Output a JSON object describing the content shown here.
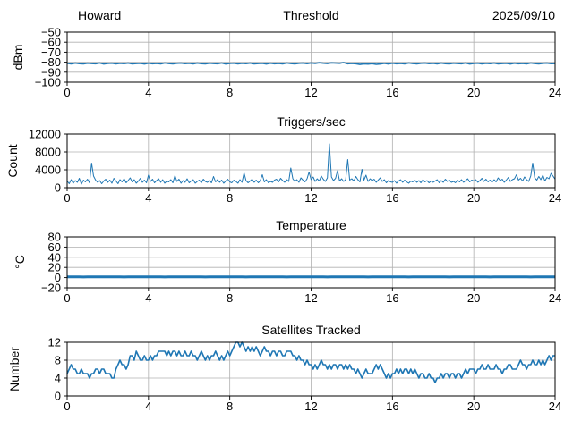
{
  "figure": {
    "background": "#ffffff",
    "line_color": "#1f77b4",
    "grid_color": "#b0b0b0",
    "spine_color": "#000000",
    "text_color": "#000000"
  },
  "chart_data": [
    {
      "id": "threshold",
      "type": "line",
      "title": "Threshold",
      "title_left": "Howard",
      "title_right": "2025/09/10",
      "ylabel": "dBm",
      "xlabel": "",
      "xlim": [
        0,
        24
      ],
      "ylim": [
        -100,
        -50
      ],
      "xticks": [
        0,
        4,
        8,
        12,
        16,
        20,
        24
      ],
      "yticks": [
        -100,
        -90,
        -80,
        -70,
        -60,
        -50
      ],
      "grid": true,
      "legend": "none",
      "x_start": 0,
      "x_step": 0.2,
      "line_width": 1.6,
      "values": [
        -81.1,
        -81.6,
        -80.9,
        -81.4,
        -81.7,
        -81.0,
        -81.3,
        -81.5,
        -80.8,
        -81.8,
        -81.2,
        -81.0,
        -81.7,
        -81.1,
        -81.4,
        -80.9,
        -81.6,
        -81.3,
        -81.1,
        -81.8,
        -81.0,
        -81.5,
        -81.2,
        -81.7,
        -80.8,
        -81.3,
        -81.6,
        -81.1,
        -80.9,
        -81.4,
        -81.1,
        -81.6,
        -80.9,
        -81.4,
        -81.7,
        -81.0,
        -81.3,
        -81.5,
        -80.8,
        -81.8,
        -81.2,
        -81.0,
        -81.7,
        -81.1,
        -81.4,
        -80.9,
        -81.6,
        -81.3,
        -81.1,
        -81.8,
        -81.0,
        -81.5,
        -81.2,
        -81.7,
        -80.8,
        -81.3,
        -81.6,
        -81.1,
        -80.9,
        -81.4,
        -80.7,
        -81.2,
        -80.5,
        -81.0,
        -81.3,
        -80.6,
        -80.9,
        -81.1,
        -80.4,
        -81.5,
        -81.2,
        -81.5,
        -82.2,
        -81.6,
        -81.9,
        -81.4,
        -82.1,
        -81.8,
        -81.1,
        -81.8,
        -81.0,
        -81.5,
        -81.2,
        -81.7,
        -80.8,
        -81.3,
        -81.6,
        -81.1,
        -80.9,
        -81.4,
        -81.1,
        -81.6,
        -80.9,
        -81.4,
        -81.7,
        -81.0,
        -81.3,
        -81.5,
        -80.8,
        -81.8,
        -81.2,
        -81.0,
        -81.7,
        -81.1,
        -81.4,
        -80.9,
        -81.6,
        -81.3,
        -81.1,
        -81.8,
        -81.0,
        -81.5,
        -81.2,
        -81.7,
        -80.8,
        -81.3,
        -81.6,
        -81.1,
        -80.9,
        -81.4,
        -81.3
      ]
    },
    {
      "id": "triggers",
      "type": "line",
      "title": "Triggers/sec",
      "ylabel": "Count",
      "xlabel": "",
      "xlim": [
        0,
        24
      ],
      "ylim": [
        0,
        12000
      ],
      "xticks": [
        0,
        4,
        8,
        12,
        16,
        20,
        24
      ],
      "yticks": [
        0,
        4000,
        8000,
        12000
      ],
      "grid": true,
      "legend": "none",
      "x_start": 0,
      "x_step": 0.1,
      "line_width": 1,
      "values": [
        1500,
        900,
        1800,
        1000,
        1600,
        1200,
        2100,
        800,
        1700,
        1300,
        1900,
        1100,
        5500,
        2600,
        1700,
        1200,
        1600,
        900,
        1500,
        1900,
        1200,
        1700,
        1000,
        2100,
        1500,
        900,
        1800,
        1300,
        2000,
        1100,
        1600,
        2200,
        1300,
        1800,
        1000,
        1500,
        2100,
        1200,
        1700,
        1100,
        2800,
        1400,
        1900,
        1100,
        1600,
        2000,
        1200,
        1800,
        1000,
        1500,
        1300,
        1800,
        1100,
        2700,
        1400,
        1900,
        1000,
        1600,
        1200,
        2000,
        1100,
        1500,
        1800,
        1000,
        1400,
        1700,
        1100,
        1900,
        1400,
        1200,
        1600,
        1100,
        2500,
        1300,
        1800,
        1200,
        1700,
        1000,
        1500,
        1900,
        1300,
        1100,
        1700,
        1400,
        1000,
        1800,
        1200,
        3300,
        1600,
        1100,
        1500,
        1900,
        1200,
        1700,
        1100,
        1600,
        2900,
        1300,
        1800,
        1100,
        1400,
        1200,
        1700,
        1900,
        1300,
        2100,
        1600,
        1200,
        1800,
        1400,
        4400,
        2000,
        1400,
        1800,
        1200,
        2200,
        1700,
        1300,
        2000,
        3500,
        1800,
        2400,
        1400,
        2000,
        1500,
        2600,
        1900,
        1400,
        2200,
        9800,
        2400,
        1600,
        2100,
        3800,
        1500,
        2000,
        1400,
        1800,
        6300,
        1700,
        2000,
        1500,
        2500,
        1800,
        1300,
        4100,
        1700,
        2800,
        1400,
        2000,
        1600,
        1900,
        1200,
        1700,
        2200,
        1400,
        1800,
        1100,
        1600,
        1300,
        1200,
        1600,
        1000,
        1500,
        1800,
        1200,
        1700,
        1300,
        1000,
        1500,
        1300,
        1700,
        1200,
        1600,
        1100,
        1800,
        1300,
        1600,
        1100,
        1500,
        1200,
        1500,
        1800,
        1100,
        1600,
        1200,
        1900,
        1400,
        1700,
        1200,
        1400,
        1100,
        1700,
        1300,
        1800,
        1200,
        1600,
        2000,
        1300,
        1700,
        1500,
        1800,
        1200,
        1600,
        2100,
        1400,
        1900,
        1300,
        1700,
        1200,
        1800,
        1300,
        2200,
        1600,
        1900,
        1200,
        1700,
        2300,
        1400,
        1800,
        2000,
        2900,
        1700,
        2100,
        1500,
        2400,
        1800,
        1400,
        2600,
        5500,
        2200,
        1700,
        2500,
        1800,
        2800,
        1500,
        2300,
        2000,
        3200,
        2600,
        1900
      ]
    },
    {
      "id": "temperature",
      "type": "line",
      "title": "Temperature",
      "ylabel": "°C",
      "xlabel": "",
      "xlim": [
        0,
        24
      ],
      "ylim": [
        -20,
        80
      ],
      "xticks": [
        0,
        4,
        8,
        12,
        16,
        20,
        24
      ],
      "yticks": [
        -20,
        0,
        20,
        40,
        60,
        80
      ],
      "grid": true,
      "legend": "none",
      "x_start": 0,
      "x_step": 0.2,
      "line_width": 3,
      "values": [
        1.5,
        1.4,
        1.6,
        1.5,
        1.3,
        1.6,
        1.4,
        1.5,
        1.6,
        1.4,
        1.5,
        1.4,
        1.6,
        1.5,
        1.3,
        1.6,
        1.4,
        1.5,
        1.6,
        1.4,
        1.5,
        1.4,
        1.6,
        1.5,
        1.3,
        1.6,
        1.4,
        1.5,
        1.6,
        1.4,
        1.5,
        1.4,
        1.6,
        1.5,
        1.3,
        1.6,
        1.4,
        1.5,
        1.6,
        1.4,
        1.5,
        1.4,
        1.6,
        1.5,
        1.3,
        1.6,
        1.4,
        1.5,
        1.6,
        1.4,
        1.5,
        1.4,
        1.6,
        1.5,
        1.3,
        1.6,
        1.4,
        1.5,
        1.6,
        1.4,
        1.5,
        1.4,
        1.6,
        1.5,
        1.3,
        1.6,
        1.4,
        1.5,
        1.6,
        1.4,
        1.5,
        1.4,
        1.6,
        1.5,
        1.3,
        1.6,
        1.4,
        1.5,
        1.6,
        1.4,
        1.5,
        1.4,
        1.6,
        1.5,
        1.3,
        1.6,
        1.4,
        1.5,
        1.6,
        1.4,
        1.5,
        1.4,
        1.6,
        1.5,
        1.3,
        1.6,
        1.4,
        1.5,
        1.6,
        1.4,
        1.5,
        1.4,
        1.6,
        1.5,
        1.3,
        1.6,
        1.4,
        1.5,
        1.6,
        1.4,
        1.5,
        1.4,
        1.6,
        1.5,
        1.3,
        1.6,
        1.4,
        1.5,
        1.6,
        1.4,
        1.5
      ]
    },
    {
      "id": "satellites",
      "type": "line",
      "title": "Satellites Tracked",
      "ylabel": "Number",
      "xlabel": "",
      "xlim": [
        0,
        24
      ],
      "ylim": [
        0,
        12
      ],
      "xticks": [
        0,
        4,
        8,
        12,
        16,
        20,
        24
      ],
      "yticks": [
        0,
        4,
        8,
        12
      ],
      "grid": true,
      "legend": "none",
      "x_start": 0,
      "x_step": 0.1,
      "line_width": 1.6,
      "values": [
        5,
        6,
        7,
        6,
        6,
        5,
        5,
        6,
        5,
        5,
        5,
        4,
        5,
        5,
        6,
        6,
        5,
        6,
        6,
        5,
        5,
        5,
        4,
        4,
        6,
        7,
        8,
        7,
        7,
        6,
        7,
        9,
        9,
        8,
        10,
        9,
        8,
        8,
        9,
        8,
        8,
        9,
        8,
        9,
        9,
        10,
        10,
        10,
        10,
        9,
        10,
        9,
        10,
        10,
        9,
        10,
        9,
        9,
        10,
        9,
        9,
        10,
        9,
        9,
        8,
        9,
        10,
        9,
        8,
        9,
        8,
        9,
        9,
        10,
        9,
        8,
        9,
        8,
        9,
        10,
        9,
        10,
        11,
        12,
        12,
        11,
        12,
        11,
        10,
        11,
        10,
        11,
        10,
        11,
        10,
        9,
        10,
        11,
        10,
        10,
        9,
        10,
        10,
        9,
        10,
        10,
        9,
        9,
        10,
        10,
        10,
        9,
        9,
        8,
        9,
        8,
        8,
        7,
        8,
        7,
        7,
        6,
        7,
        6,
        7,
        8,
        7,
        7,
        6,
        7,
        6,
        7,
        7,
        6,
        7,
        7,
        6,
        7,
        6,
        7,
        6,
        6,
        5,
        6,
        5,
        4,
        5,
        6,
        5,
        5,
        5,
        6,
        7,
        6,
        7,
        6,
        5,
        4,
        5,
        4,
        5,
        5,
        6,
        5,
        6,
        5,
        6,
        6,
        5,
        6,
        5,
        6,
        5,
        4,
        5,
        5,
        4,
        4,
        5,
        4,
        4,
        3,
        4,
        4,
        5,
        4,
        5,
        5,
        4,
        5,
        5,
        4,
        5,
        5,
        4,
        5,
        6,
        5,
        6,
        6,
        6,
        5,
        6,
        6,
        7,
        6,
        6,
        7,
        6,
        6,
        6,
        7,
        6,
        6,
        5,
        6,
        6,
        7,
        7,
        6,
        6,
        6,
        7,
        8,
        7,
        7,
        6,
        7,
        7,
        8,
        7,
        7,
        8,
        7,
        8,
        7,
        8,
        9,
        8,
        9,
        9
      ]
    }
  ]
}
